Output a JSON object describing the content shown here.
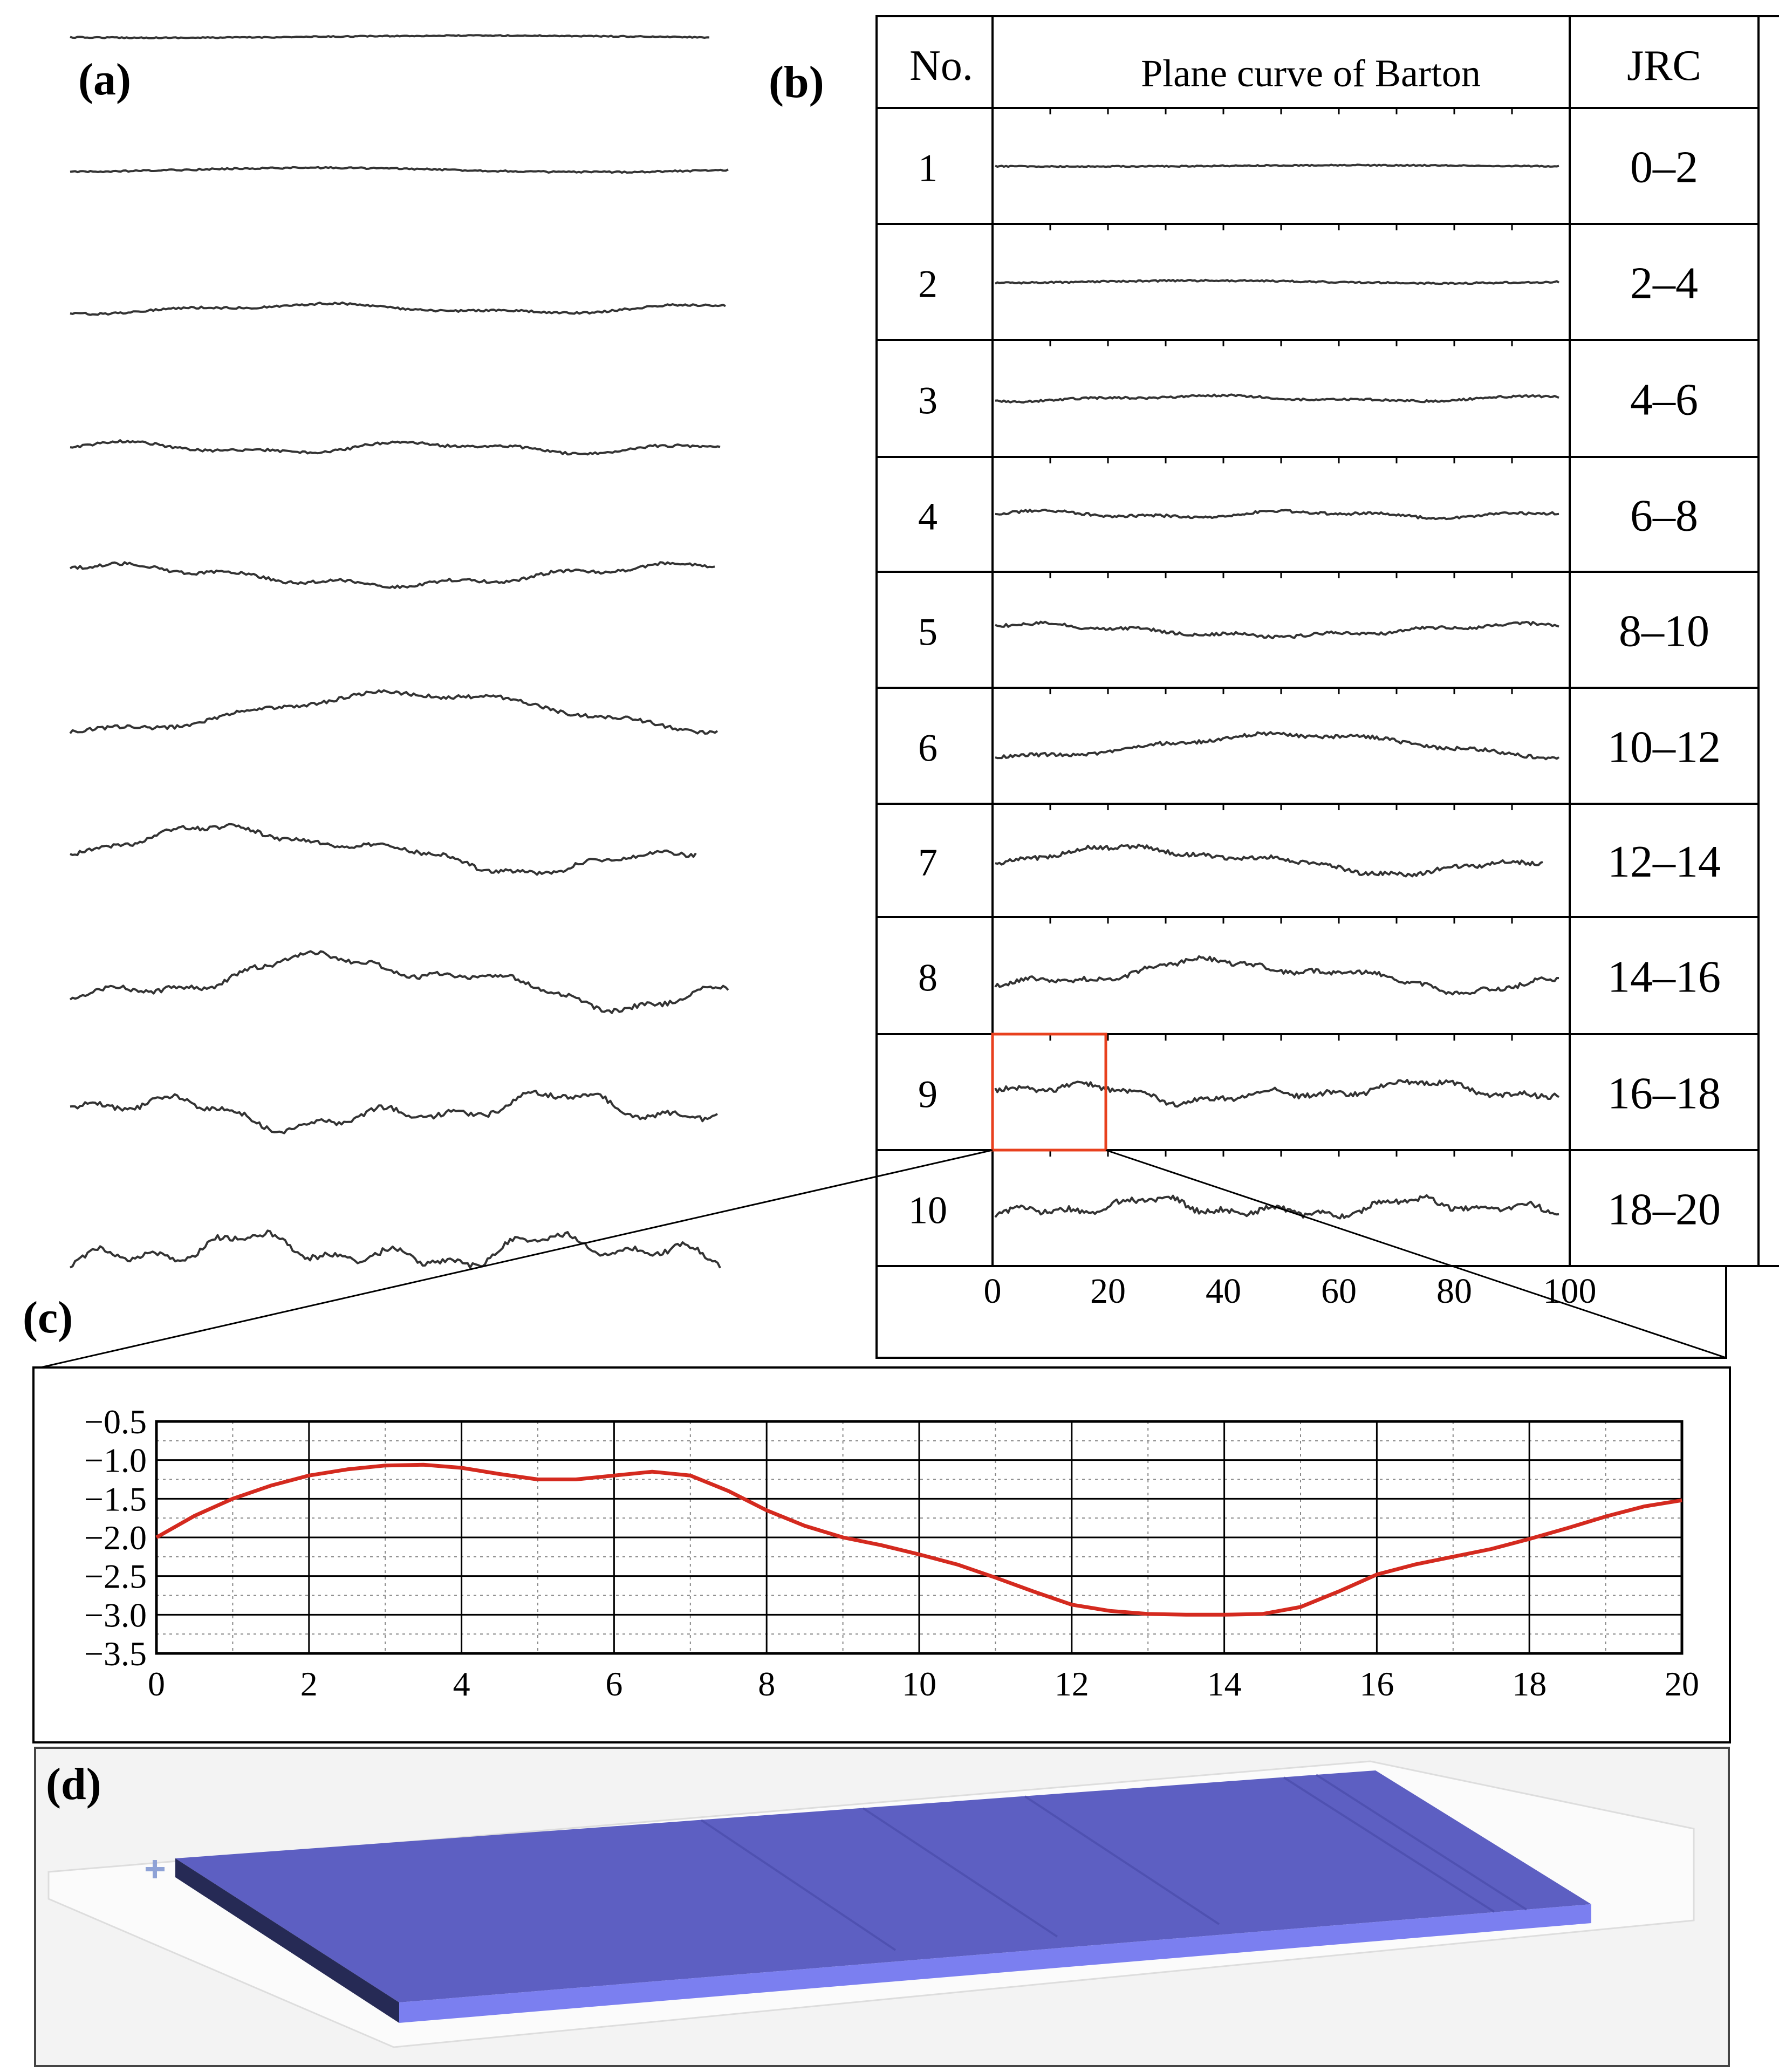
{
  "panels": {
    "a": {
      "label": "(a)"
    },
    "b": {
      "label": "(b)",
      "header": {
        "no": "No.",
        "curve": "Plane curve of  Barton",
        "jrc": "JRC"
      },
      "rows": [
        {
          "no": "1",
          "jrc": "0–2"
        },
        {
          "no": "2",
          "jrc": "2–4"
        },
        {
          "no": "3",
          "jrc": "4–6"
        },
        {
          "no": "4",
          "jrc": "6–8"
        },
        {
          "no": "5",
          "jrc": "8–10"
        },
        {
          "no": "6",
          "jrc": "10–12"
        },
        {
          "no": "7",
          "jrc": "12–14"
        },
        {
          "no": "8",
          "jrc": "14–16"
        },
        {
          "no": "9",
          "jrc": "16–18"
        },
        {
          "no": "10",
          "jrc": "18–20"
        }
      ],
      "x_ticks": [
        "0",
        "20",
        "40",
        "60",
        "80",
        "100"
      ]
    },
    "c": {
      "label": "(c)"
    },
    "d": {
      "label": "(d)"
    }
  },
  "chart_data": {
    "type": "line",
    "title": "",
    "xlabel": "",
    "ylabel": "",
    "xlim": [
      0,
      20
    ],
    "ylim": [
      -3.5,
      -0.5
    ],
    "x_ticks": [
      0,
      2,
      4,
      6,
      8,
      10,
      12,
      14,
      16,
      18,
      20
    ],
    "y_ticks": [
      -0.5,
      -1.0,
      -1.5,
      -2.0,
      -2.5,
      -3.0,
      -3.5
    ],
    "x_tick_labels": [
      "0",
      "2",
      "4",
      "6",
      "8",
      "10",
      "12",
      "14",
      "16",
      "18",
      "20"
    ],
    "y_tick_labels": [
      "−0.5",
      "−1.0",
      "−1.5",
      "−2.0",
      "−2.5",
      "−3.0",
      "−3.5"
    ],
    "grid": true,
    "series_color": "#d42a1f",
    "series": [
      {
        "x": [
          0,
          0.5,
          1,
          1.5,
          2,
          2.5,
          3,
          3.5,
          4,
          4.5,
          5,
          5.5,
          6,
          6.5,
          7,
          7.5,
          8,
          8.5,
          9,
          9.5,
          10,
          10.5,
          11,
          11.5,
          12,
          12.5,
          13,
          13.5,
          14,
          14.5,
          15,
          15.5,
          16,
          16.5,
          17,
          17.5,
          18,
          18.5,
          19,
          19.5,
          20
        ],
        "y": [
          -2.0,
          -1.72,
          -1.5,
          -1.33,
          -1.2,
          -1.12,
          -1.07,
          -1.06,
          -1.1,
          -1.18,
          -1.25,
          -1.25,
          -1.2,
          -1.15,
          -1.2,
          -1.4,
          -1.65,
          -1.85,
          -2.0,
          -2.1,
          -2.22,
          -2.35,
          -2.52,
          -2.7,
          -2.87,
          -2.95,
          -2.99,
          -3.0,
          -3.0,
          -2.99,
          -2.9,
          -2.7,
          -2.48,
          -2.35,
          -2.25,
          -2.15,
          -2.02,
          -1.88,
          -1.73,
          -1.6,
          -1.52
        ]
      }
    ]
  },
  "colors": {
    "highlight_box": "#e8401e",
    "slab_top": "#5d5fc2",
    "slab_front": "#7b7ff0",
    "slab_side": "#262a55"
  }
}
